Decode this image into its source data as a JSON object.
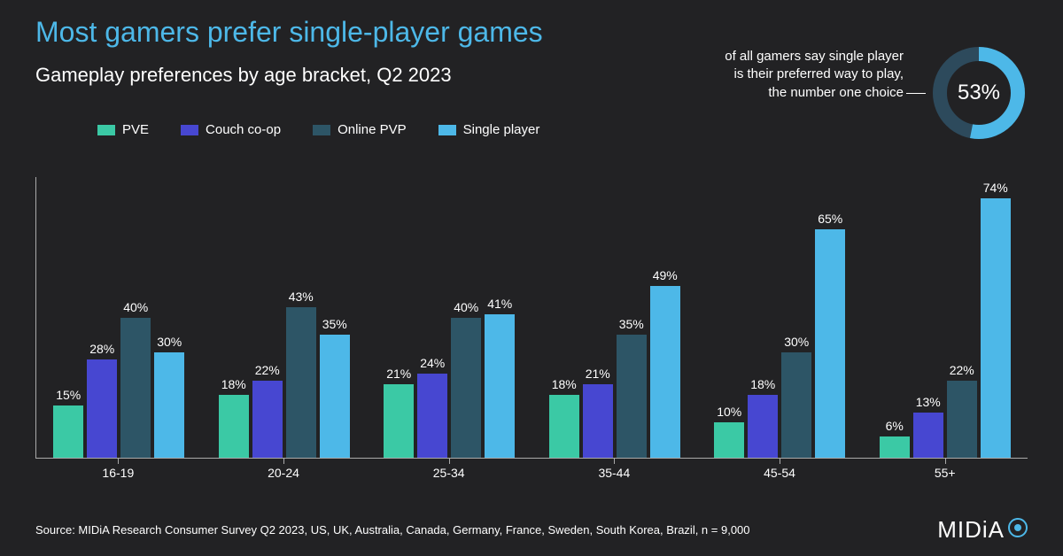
{
  "title": "Most gamers prefer single-player games",
  "title_color": "#4db8e8",
  "title_fontsize": 32,
  "subtitle": "Gameplay preferences by age bracket, Q2 2023",
  "subtitle_fontsize": 22,
  "background_color": "#222224",
  "text_color": "#ffffff",
  "callout": {
    "text": "of all gamers say single player is their preferred way to play, the number one choice",
    "value": "53%",
    "percent": 53,
    "ring_fg": "#4db8e8",
    "ring_bg": "#2d4a5c",
    "value_fontsize": 24
  },
  "legend": {
    "items": [
      {
        "label": "PVE",
        "color": "#3bc9a5"
      },
      {
        "label": "Couch co-op",
        "color": "#4747d1"
      },
      {
        "label": "Online PVP",
        "color": "#2d5566"
      },
      {
        "label": "Single player",
        "color": "#4db8e8"
      }
    ],
    "fontsize": 15
  },
  "chart": {
    "type": "grouped-bar",
    "y_max": 80,
    "axis_color": "#aaaaaa",
    "label_fontsize": 14,
    "categories": [
      "16-19",
      "20-24",
      "25-34",
      "35-44",
      "45-54",
      "55+"
    ],
    "series": [
      {
        "name": "PVE",
        "color": "#3bc9a5",
        "values": [
          15,
          18,
          21,
          18,
          10,
          6
        ]
      },
      {
        "name": "Couch co-op",
        "color": "#4747d1",
        "values": [
          28,
          22,
          24,
          21,
          18,
          13
        ]
      },
      {
        "name": "Online PVP",
        "color": "#2d5566",
        "values": [
          40,
          43,
          40,
          35,
          30,
          22
        ]
      },
      {
        "name": "Single player",
        "color": "#4db8e8",
        "values": [
          30,
          35,
          41,
          49,
          65,
          74
        ]
      }
    ]
  },
  "source": "Source: MIDiA Research Consumer Survey Q2 2023, US, UK, Australia, Canada, Germany, France, Sweden, South Korea, Brazil, n = 9,000",
  "source_fontsize": 13,
  "logo": {
    "text": "MIDiA",
    "dot_outer": "#4db8e8",
    "dot_inner": "#ffffff"
  }
}
